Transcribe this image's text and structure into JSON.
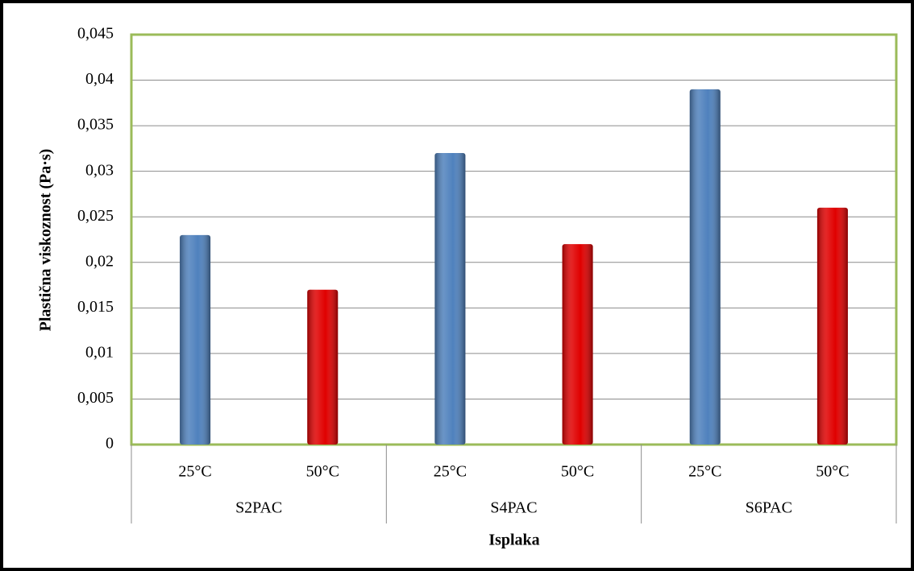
{
  "chart_data": {
    "type": "bar",
    "categories": [
      "25°C",
      "50°C",
      "25°C",
      "50°C",
      "25°C",
      "50°C"
    ],
    "groups": [
      "S2PAC",
      "S4PAC",
      "S6PAC"
    ],
    "values": [
      0.023,
      0.017,
      0.032,
      0.022,
      0.039,
      0.026
    ],
    "colors": [
      "#4f81bd",
      "#e00000",
      "#4f81bd",
      "#e00000",
      "#4f81bd",
      "#e00000"
    ],
    "x_label": "Isplaka",
    "y_label": "Plastična viskoznost (Pa·s)",
    "ylim": [
      0,
      0.045
    ],
    "yticks": [
      0,
      {
        "value": 0.005,
        "label": "0,005"
      },
      {
        "value": 0.01,
        "label": "0,01"
      },
      {
        "value": 0.015,
        "label": "0,015"
      },
      {
        "value": 0.02,
        "label": "0,02"
      },
      {
        "value": 0.025,
        "label": "0,025"
      },
      {
        "value": 0.03,
        "label": "0,03"
      },
      {
        "value": 0.035,
        "label": "0,035"
      },
      {
        "value": 0.04,
        "label": "0,04"
      },
      {
        "value": 0.045,
        "label": "0,045"
      }
    ],
    "grid": true,
    "plot_border_color": "#9bbb59"
  }
}
